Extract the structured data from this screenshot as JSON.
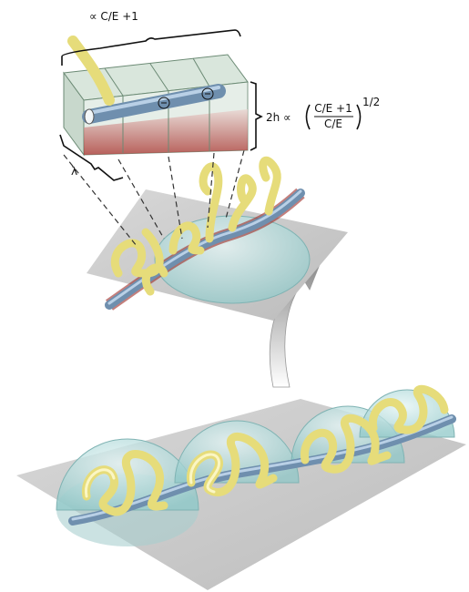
{
  "labels": {
    "width_scaling": "∝ C/E +1",
    "height_prefix": "2h ∝",
    "height_numerator": "C/E +1",
    "height_denominator": "C/E",
    "height_exponent": "1/2",
    "wavelength": "λ"
  }
}
